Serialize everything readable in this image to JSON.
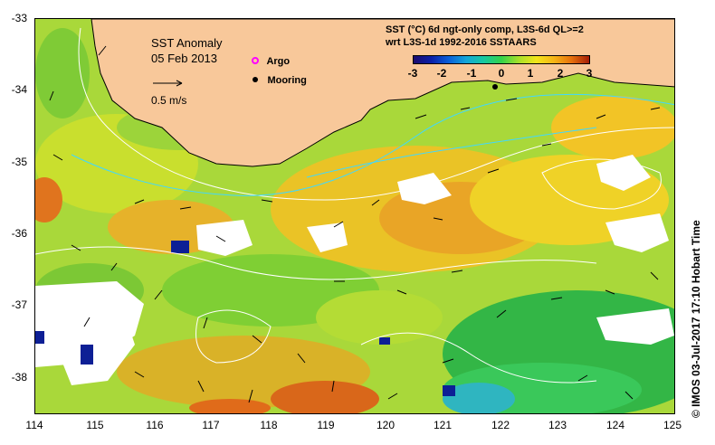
{
  "map": {
    "title": "SST Anomaly",
    "date": "05 Feb 2013",
    "velocity_scale_label": "0.5 m/s",
    "legend": [
      {
        "label": "Argo",
        "icon": "argo-float-icon",
        "color": "#ff00ff"
      },
      {
        "label": "Mooring",
        "icon": "mooring-icon",
        "color": "#000000"
      }
    ],
    "description_line1": "SST (°C) 6d ngt-only comp, L3S-6d QL>=2",
    "description_line2": "wrt L3S-1d 1992-2016 SSTAARS",
    "colorbar_ticks": [
      "-3",
      "-2",
      "-1",
      "0",
      "1",
      "2",
      "3"
    ],
    "x_axis_ticks": [
      "114",
      "115",
      "116",
      "117",
      "118",
      "119",
      "120",
      "121",
      "122",
      "123",
      "124",
      "125"
    ],
    "y_axis_ticks": [
      "-33",
      "-34",
      "-35",
      "-36",
      "-37",
      "-38"
    ],
    "copyright": "©  IMOS 03-Jul-2017 17:10 Hobart Time",
    "colors": {
      "land": "#f8c89a",
      "missing_data": "#ffffff",
      "coastline": "#000000",
      "contour": "#ffffff"
    }
  }
}
